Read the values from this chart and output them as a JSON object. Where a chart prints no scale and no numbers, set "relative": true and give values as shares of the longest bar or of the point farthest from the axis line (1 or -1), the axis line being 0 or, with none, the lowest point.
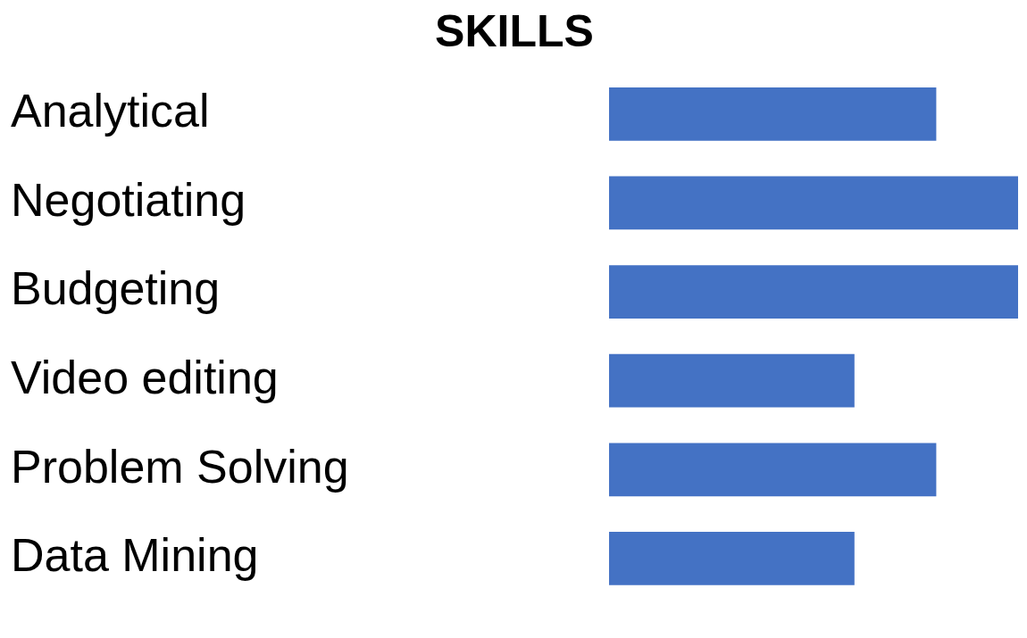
{
  "chart_data": {
    "type": "bar",
    "title": "SKILLS",
    "orientation": "horizontal",
    "relative": true,
    "categories": [
      "Analytical",
      "Negotiating",
      "Budgeting",
      "Video editing",
      "Problem Solving",
      "Data Mining"
    ],
    "values": [
      0.8,
      1,
      1,
      0.6,
      0.8,
      0.6
    ],
    "color": "#4472c4",
    "grid": false,
    "legend": false
  }
}
